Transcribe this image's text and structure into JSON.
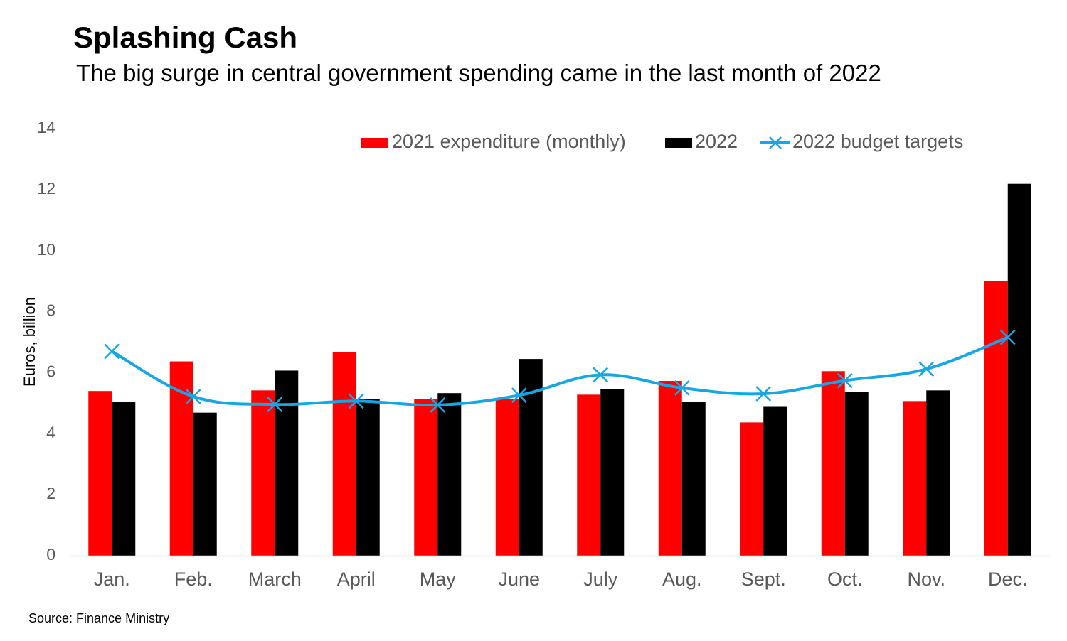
{
  "header": {
    "title": "Splashing Cash",
    "subtitle": "The big surge in central government spending came in the last month of 2022"
  },
  "footer": {
    "source": "Source: Finance Ministry"
  },
  "colors": {
    "series_2021": "#ff0000",
    "series_2022": "#000000",
    "series_budget": "#16a6e6",
    "axis": "#d9d9d9",
    "tick_text": "#595959"
  },
  "chart_data": {
    "type": "bar",
    "title": "Splashing Cash",
    "subtitle": "The big surge in central government spending came in the last month of 2022",
    "xlabel": "",
    "ylabel": "Euros, billion",
    "ylim": [
      0,
      14
    ],
    "yticks": [
      "0",
      "2",
      "4",
      "6",
      "8",
      "10",
      "12",
      "14"
    ],
    "grid": false,
    "legend_position": "top-right",
    "categories": [
      "Jan.",
      "Feb.",
      "March",
      "April",
      "May",
      "June",
      "July",
      "Aug.",
      "Sept.",
      "Oct.",
      "Nov.",
      "Dec."
    ],
    "series": [
      {
        "name": "2021 expenditure (monthly)",
        "type": "bar",
        "values": [
          5.4,
          6.37,
          5.42,
          6.67,
          5.14,
          5.13,
          5.28,
          5.73,
          4.37,
          6.05,
          5.07,
          9.0
        ]
      },
      {
        "name": "2022",
        "type": "bar",
        "values": [
          5.04,
          4.69,
          6.07,
          5.14,
          5.33,
          6.45,
          5.47,
          5.04,
          4.88,
          5.37,
          5.42,
          12.19
        ]
      },
      {
        "name": "2022 budget targets",
        "type": "line",
        "marker": "x",
        "values": [
          6.7,
          5.22,
          4.96,
          5.07,
          4.94,
          5.26,
          5.93,
          5.5,
          5.31,
          5.74,
          6.12,
          7.16
        ]
      }
    ]
  }
}
